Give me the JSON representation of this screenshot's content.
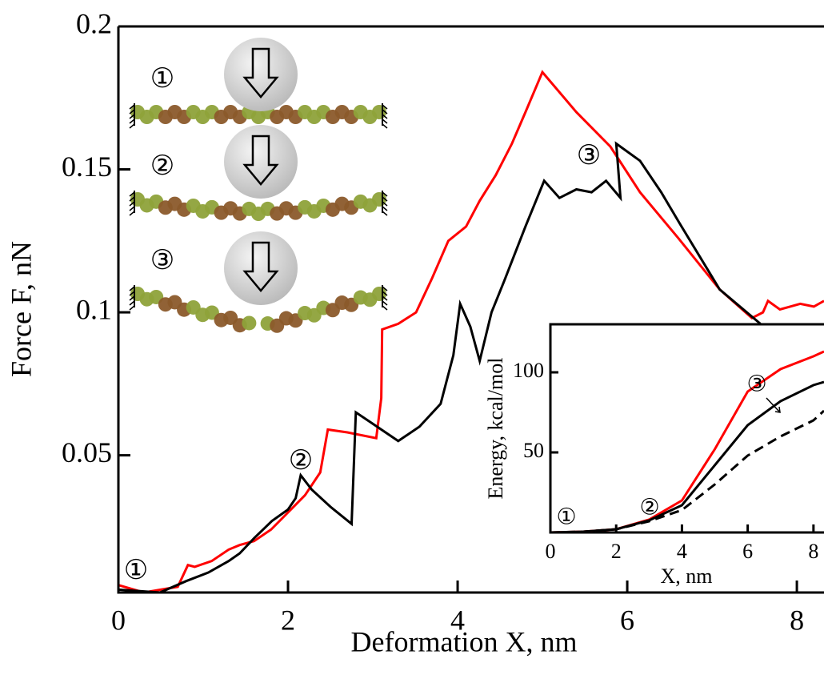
{
  "chart_data": [
    {
      "type": "line",
      "xlabel": "Deformation X, nm",
      "ylabel": "Force F, nN",
      "xlim": [
        0,
        8.32
      ],
      "ylim": [
        0.002,
        0.2
      ],
      "xticks": [
        0,
        2,
        4,
        6,
        8
      ],
      "yticks": [
        0.05,
        0.1,
        0.15,
        0.2
      ],
      "series": [
        {
          "color": "#ff0000",
          "x": [
            0,
            0.3,
            0.5,
            0.7,
            0.82,
            0.9,
            1.1,
            1.3,
            1.43,
            1.6,
            1.8,
            2.0,
            2.2,
            2.38,
            2.47,
            2.7,
            3.04,
            3.1,
            3.11,
            3.3,
            3.51,
            3.7,
            3.89,
            4.1,
            4.26,
            4.45,
            4.64,
            4.8,
            5.0,
            5.4,
            5.8,
            6.15,
            6.6,
            7.09,
            7.47,
            7.6,
            7.66,
            7.8,
            8.04,
            8.2,
            8.32
          ],
          "values": [
            0.0046,
            0.002,
            0.003,
            0.004,
            0.0116,
            0.011,
            0.013,
            0.017,
            0.0186,
            0.02,
            0.024,
            0.03,
            0.036,
            0.044,
            0.059,
            0.058,
            0.056,
            0.07,
            0.094,
            0.096,
            0.1,
            0.112,
            0.125,
            0.13,
            0.139,
            0.148,
            0.159,
            0.17,
            0.184,
            0.17,
            0.158,
            0.142,
            0.126,
            0.108,
            0.098,
            0.1,
            0.104,
            0.101,
            0.103,
            0.102,
            0.104
          ]
        },
        {
          "color": "#000000",
          "x": [
            0,
            0.49,
            0.8,
            1.06,
            1.3,
            1.43,
            1.6,
            1.81,
            2.0,
            2.09,
            2.15,
            2.28,
            2.5,
            2.75,
            2.8,
            3.0,
            3.3,
            3.55,
            3.8,
            3.95,
            4.03,
            4.15,
            4.26,
            4.4,
            4.55,
            4.8,
            5.02,
            5.2,
            5.4,
            5.58,
            5.75,
            5.92,
            5.87,
            6.15,
            6.4,
            6.62,
            7.09,
            7.57
          ],
          "values": [
            0.003,
            0.002,
            0.006,
            0.009,
            0.013,
            0.0157,
            0.021,
            0.027,
            0.031,
            0.035,
            0.043,
            0.038,
            0.032,
            0.026,
            0.065,
            0.061,
            0.055,
            0.06,
            0.068,
            0.085,
            0.103,
            0.095,
            0.083,
            0.1,
            0.111,
            0.13,
            0.146,
            0.14,
            0.143,
            0.142,
            0.146,
            0.14,
            0.159,
            0.153,
            0.142,
            0.131,
            0.108,
            0.096
          ]
        }
      ],
      "annotations": [
        "①",
        "②",
        "③"
      ],
      "illustration_labels": [
        "①",
        "②",
        "③"
      ]
    },
    {
      "type": "line",
      "xlabel": "X, nm",
      "ylabel": "Energy, kcal/mol",
      "xlim": [
        0,
        8.32
      ],
      "ylim": [
        0,
        130
      ],
      "xticks": [
        0,
        2,
        4,
        6,
        8
      ],
      "yticks": [
        50,
        100
      ],
      "series": [
        {
          "color": "#ff0000",
          "line_style": "solid",
          "x": [
            0,
            1,
            2,
            3,
            4,
            5,
            6,
            7,
            8,
            8.32
          ],
          "values": [
            0,
            0.5,
            2,
            8,
            20,
            52,
            88,
            102,
            110,
            113
          ]
        },
        {
          "color": "#000000",
          "line_style": "solid",
          "x": [
            0,
            1,
            2,
            3,
            4,
            5,
            6,
            7,
            8,
            8.32
          ],
          "values": [
            0,
            0.5,
            2,
            7.5,
            17,
            42,
            67,
            82,
            92,
            94
          ]
        },
        {
          "color": "#000000",
          "line_style": "dashed",
          "x": [
            0,
            1,
            2,
            3,
            4,
            5,
            6,
            7,
            8,
            8.32
          ],
          "values": [
            0,
            0.5,
            2,
            7,
            14,
            30,
            48,
            60,
            70,
            76
          ]
        }
      ],
      "annotations": [
        "①",
        "②",
        "③"
      ]
    }
  ]
}
